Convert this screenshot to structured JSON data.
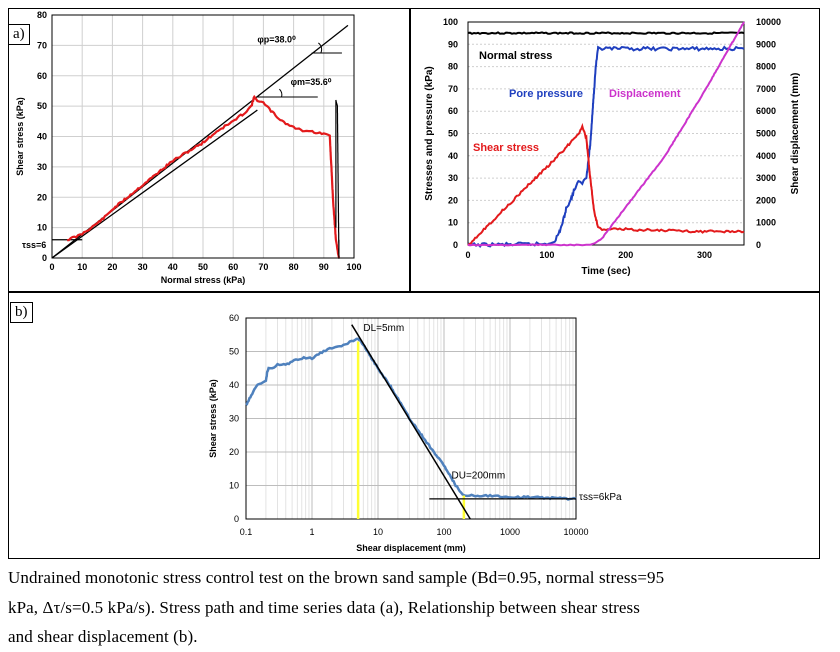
{
  "chart_data": [
    {
      "id": "a-left",
      "type": "line",
      "tag": "a)",
      "xlabel": "Normal stress (kPa)",
      "ylabel": "Shear stress (kPa)",
      "xlim": [
        0,
        100
      ],
      "ylim": [
        0,
        80
      ],
      "xticks": [
        "0",
        "10",
        "20",
        "30",
        "40",
        "50",
        "60",
        "70",
        "80",
        "90",
        "100"
      ],
      "yticks": [
        "0",
        "10",
        "20",
        "30",
        "40",
        "50",
        "60",
        "70",
        "80"
      ],
      "annotations": {
        "phi_p": "φp=38.0⁰",
        "phi_m": "φm=35.6⁰",
        "tau_ss": "τss=6"
      },
      "colors": {
        "stress_path": "#e31a1c",
        "failure_lines": "#000000",
        "final_trace": "#000000"
      },
      "failure_lines": [
        {
          "name": "peak",
          "angle_deg": 38.0,
          "x": [
            0,
            98
          ],
          "y": [
            0,
            76.6
          ]
        },
        {
          "name": "mobilized",
          "angle_deg": 35.6,
          "x": [
            0,
            68
          ],
          "y": [
            0,
            48.7
          ]
        }
      ],
      "tau_ss_line": {
        "x": [
          0,
          10
        ],
        "y": [
          6,
          6
        ]
      },
      "series": [
        {
          "x": [
            5,
            8,
            10,
            13,
            17,
            20,
            25,
            30,
            35,
            40,
            45,
            50,
            55,
            60,
            64,
            66,
            67,
            68,
            70,
            72,
            75,
            78,
            80,
            83,
            85,
            88,
            90,
            92,
            93,
            94,
            94.5,
            95
          ],
          "y": [
            6,
            7,
            8,
            10,
            13,
            16,
            20,
            24,
            28,
            32,
            35,
            38,
            42,
            45,
            48,
            50,
            53,
            52,
            51,
            49,
            46,
            44,
            43,
            42,
            42,
            41,
            41,
            40,
            20,
            6,
            3,
            0
          ]
        },
        {
          "x": [
            94,
            94,
            94.5,
            95,
            95
          ],
          "y": [
            10,
            52,
            50,
            0,
            6
          ]
        }
      ]
    },
    {
      "id": "a-right",
      "type": "line",
      "xlabel": "Time (sec)",
      "ylabel": "Stresses and pressure (kPa)",
      "y2label": "Shear displacement (mm)",
      "xlim": [
        0,
        350
      ],
      "ylim": [
        0,
        100
      ],
      "y2lim": [
        0,
        10000
      ],
      "xticks": [
        "0",
        "100",
        "200",
        "300"
      ],
      "yticks": [
        "0",
        "10",
        "20",
        "30",
        "40",
        "50",
        "60",
        "70",
        "80",
        "90",
        "100"
      ],
      "y2ticks": [
        "0",
        "1000",
        "2000",
        "3000",
        "4000",
        "5000",
        "6000",
        "7000",
        "8000",
        "9000",
        "10000"
      ],
      "series": [
        {
          "name": "Normal stress",
          "color": "#000000",
          "axis": "left",
          "x": [
            0,
            350
          ],
          "y": [
            95,
            95
          ]
        },
        {
          "name": "Pore pressure",
          "color": "#1f3fbf",
          "axis": "left",
          "x": [
            0,
            100,
            110,
            115,
            120,
            125,
            130,
            135,
            140,
            145,
            150,
            155,
            160,
            162,
            165,
            170,
            200,
            250,
            300,
            350
          ],
          "y": [
            0,
            0.5,
            2,
            5,
            10,
            17,
            20,
            25,
            28,
            28,
            30,
            45,
            70,
            80,
            88,
            88,
            88,
            88,
            88,
            88
          ]
        },
        {
          "name": "Shear stress",
          "color": "#e31a1c",
          "axis": "left",
          "x": [
            0,
            20,
            40,
            60,
            80,
            100,
            120,
            140,
            145,
            150,
            155,
            160,
            165,
            170,
            200,
            250,
            300,
            350
          ],
          "y": [
            0,
            7,
            14,
            21,
            28,
            35,
            42,
            50,
            53,
            48,
            30,
            15,
            8,
            7,
            7,
            6.5,
            6,
            6
          ]
        },
        {
          "name": "Displacement",
          "color": "#cc33cc",
          "axis": "right",
          "x": [
            0,
            150,
            160,
            170,
            200,
            250,
            300,
            350
          ],
          "y": [
            0,
            10,
            50,
            300,
            1700,
            4000,
            6900,
            10000
          ]
        }
      ]
    },
    {
      "id": "b",
      "type": "line",
      "tag": "b)",
      "xlabel": "Shear displacement (mm)",
      "ylabel": "Shear stress (kPa)",
      "xscale": "log",
      "xlim": [
        0.1,
        10000
      ],
      "ylim": [
        0,
        60
      ],
      "xticks": [
        "0.1",
        "1",
        "10",
        "100",
        "1000",
        "10000"
      ],
      "yticks": [
        "0",
        "10",
        "20",
        "30",
        "40",
        "50",
        "60"
      ],
      "annotations": {
        "dl": "DL=5mm",
        "du": "DU=200mm",
        "tau_ss": "τss=6kPa"
      },
      "colors": {
        "curve": "#4f81bd",
        "markers": "#ffff33",
        "trend": "#000000"
      },
      "markers": [
        {
          "x": 5,
          "y": 53
        },
        {
          "x": 200,
          "y": 7
        }
      ],
      "trend_line": {
        "x": [
          4,
          250
        ],
        "y": [
          58,
          0
        ]
      },
      "tau_ss_line": {
        "x": [
          60,
          10000
        ],
        "y": [
          6,
          6
        ]
      },
      "series": [
        {
          "x": [
            0.1,
            0.12,
            0.15,
            0.18,
            0.2,
            0.21,
            0.22,
            0.25,
            0.3,
            0.4,
            0.5,
            0.7,
            1,
            1.5,
            2,
            3,
            4,
            5,
            6,
            7,
            8,
            10,
            15,
            20,
            30,
            50,
            70,
            100,
            150,
            200,
            300,
            500,
            1000,
            2000,
            5000,
            10000
          ],
          "y": [
            34,
            37,
            40,
            41,
            41,
            44,
            45,
            45,
            46,
            46,
            47,
            48,
            48,
            50,
            51,
            52,
            53,
            54,
            52,
            50,
            48,
            45,
            40,
            36,
            30,
            24,
            20,
            16,
            10,
            7,
            7,
            7,
            6.5,
            6.5,
            6.2,
            6
          ]
        }
      ]
    }
  ],
  "caption": {
    "line1": "Undrained monotonic stress control test on the brown sand sample (Bd=0.95, normal stress=95",
    "line2": "kPa, Δτ/s=0.5 kPa/s). Stress path and time series data (a), Relationship between shear stress",
    "line3": "and shear displacement (b)."
  }
}
